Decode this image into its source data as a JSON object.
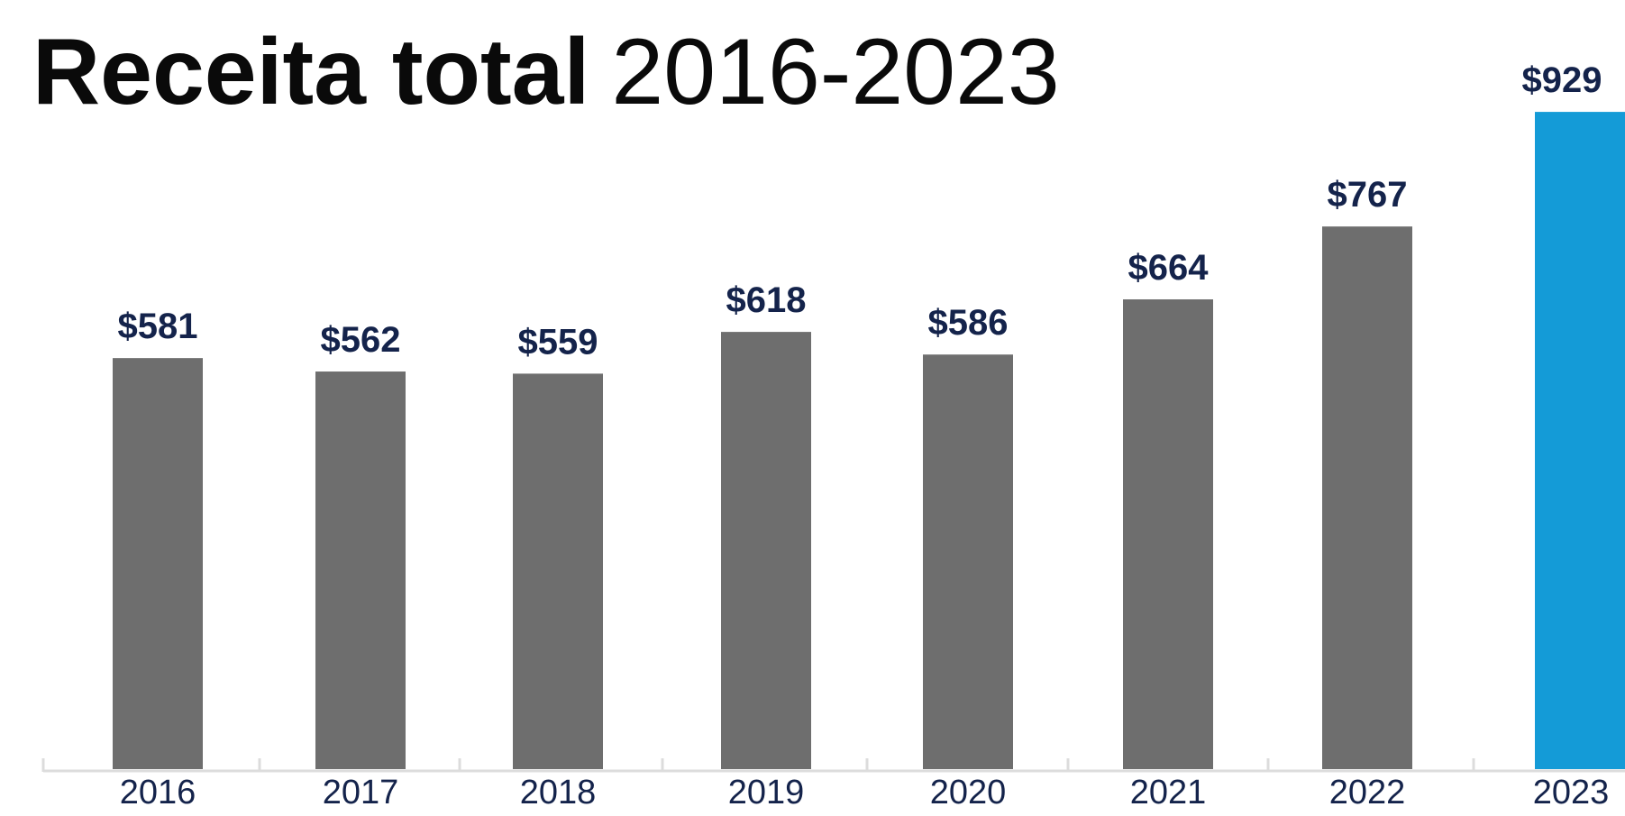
{
  "chart_data": {
    "type": "bar",
    "title_bold": "Receita total",
    "title_light": "2016-2023",
    "categories": [
      "2016",
      "2017",
      "2018",
      "2019",
      "2020",
      "2021",
      "2022",
      "2023"
    ],
    "values": [
      581,
      562,
      559,
      618,
      586,
      664,
      767,
      929
    ],
    "labels": [
      "$581",
      "$562",
      "$559",
      "$618",
      "$586",
      "$664",
      "$767",
      "$929"
    ],
    "highlight_index": 7,
    "ylim": [
      0,
      1040
    ],
    "grid": false,
    "legend": "none",
    "colors": {
      "bar": "#6e6e6e",
      "highlight": "#149bd7",
      "axis": "#dcdcdc",
      "label": "#14234b",
      "title": "#0a0a0a"
    }
  }
}
